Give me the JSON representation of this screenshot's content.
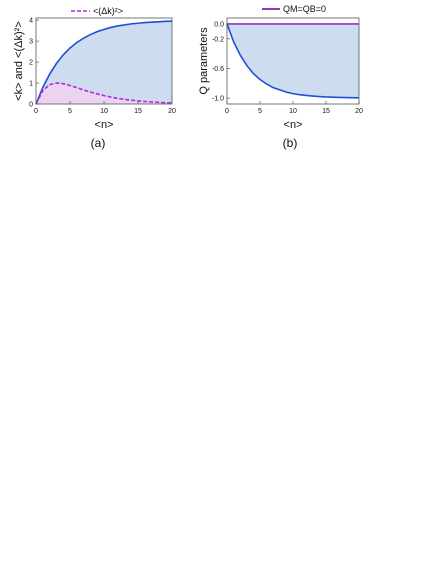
{
  "chart_data": [
    {
      "type": "line",
      "panel_label": "(a)",
      "xlabel": "<n>",
      "ylabel": "<k> and <(Δk)²>",
      "xlim": [
        0,
        20
      ],
      "ylim": [
        0,
        4.1
      ],
      "xticks": [
        0,
        5,
        10,
        15,
        20
      ],
      "yticks": [
        0,
        1,
        2,
        3,
        4
      ],
      "grid": false,
      "legend_position": "top",
      "legend": "<(Δk)²>",
      "series": [
        {
          "name": "",
          "color": "#1f4fd8",
          "fill": "#c9d8ee",
          "style": "solid",
          "x": [
            0,
            1,
            2,
            3,
            4,
            5,
            6,
            7,
            8,
            9,
            10,
            11,
            12,
            13,
            14,
            15,
            16,
            17,
            18,
            19,
            20
          ],
          "y": [
            0,
            0.79,
            1.42,
            1.93,
            2.34,
            2.67,
            2.93,
            3.14,
            3.31,
            3.45,
            3.56,
            3.65,
            3.72,
            3.77,
            3.82,
            3.85,
            3.88,
            3.9,
            3.92,
            3.94,
            3.95
          ]
        },
        {
          "name": "<(Δk)²>",
          "color": "#b52bd0",
          "fill": "#eed3ef",
          "style": "dashed",
          "x": [
            0,
            1,
            2,
            3,
            4,
            5,
            6,
            7,
            8,
            9,
            10,
            11,
            12,
            13,
            14,
            15,
            16,
            17,
            18,
            19,
            20
          ],
          "y": [
            0,
            0.64,
            0.92,
            1.0,
            0.97,
            0.88,
            0.78,
            0.67,
            0.57,
            0.48,
            0.4,
            0.33,
            0.27,
            0.22,
            0.18,
            0.15,
            0.12,
            0.1,
            0.08,
            0.06,
            0.05
          ]
        }
      ]
    },
    {
      "type": "line",
      "panel_label": "(b)",
      "xlabel": "<n>",
      "ylabel": "Q parameters",
      "xlim": [
        0,
        20
      ],
      "ylim": [
        -1.08,
        0.08
      ],
      "xticks": [
        0,
        5,
        10,
        15,
        20
      ],
      "yticks": [
        0.0,
        -0.2,
        -0.6,
        -1.0
      ],
      "ytick_labels": [
        "0.0",
        "-0.2",
        "-0.6",
        "-1.0"
      ],
      "grid": false,
      "legend_position": "top",
      "legend": "QM=QB=0",
      "series": [
        {
          "name": "QM=QB=0",
          "color": "#9a2fc4",
          "style": "solid",
          "x": [
            0,
            20
          ],
          "y": [
            0,
            0
          ]
        },
        {
          "name": "",
          "color": "#1f4fd8",
          "fill": "#c9d8ee",
          "style": "solid",
          "x": [
            0,
            1,
            2,
            3,
            4,
            5,
            6,
            7,
            8,
            9,
            10,
            11,
            12,
            13,
            14,
            15,
            16,
            17,
            18,
            19,
            20
          ],
          "y": [
            0,
            -0.24,
            -0.42,
            -0.56,
            -0.67,
            -0.75,
            -0.81,
            -0.86,
            -0.89,
            -0.92,
            -0.94,
            -0.955,
            -0.965,
            -0.973,
            -0.98,
            -0.985,
            -0.988,
            -0.991,
            -0.993,
            -0.995,
            -0.996
          ]
        }
      ]
    }
  ]
}
